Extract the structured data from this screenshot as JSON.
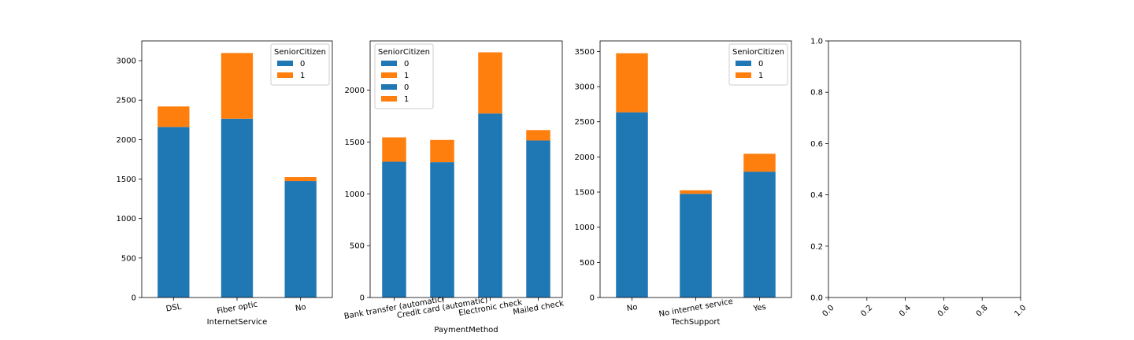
{
  "colors": {
    "senior_0": "#1f77b4",
    "senior_1": "#ff7f0e"
  },
  "chart_data": [
    {
      "type": "bar",
      "stacked": true,
      "xlabel": "InternetService",
      "ylabel": "",
      "categories": [
        "DSL",
        "Fiber optic",
        "No"
      ],
      "ylim": [
        0,
        3250
      ],
      "yticks": [
        0,
        500,
        1000,
        1500,
        2000,
        2500,
        3000
      ],
      "ytick_labels": [
        "0",
        "500",
        "1000",
        "1500",
        "2000",
        "2500",
        "3000"
      ],
      "tick_rotation": -10,
      "series": [
        {
          "name": "0",
          "values": [
            2160,
            2265,
            1475
          ]
        },
        {
          "name": "1",
          "values": [
            260,
            832,
            50
          ]
        }
      ],
      "legend": {
        "title": "SeniorCitizen",
        "placement": "top-right",
        "entries": [
          "0",
          "1"
        ]
      }
    },
    {
      "type": "bar",
      "stacked": true,
      "xlabel": "PaymentMethod",
      "ylabel": "",
      "categories": [
        "Bank transfer (automatic)",
        "Credit card (automatic)",
        "Electronic check",
        "Mailed check"
      ],
      "ylim": [
        0,
        2475
      ],
      "yticks": [
        0,
        500,
        1000,
        1500,
        2000
      ],
      "ytick_labels": [
        "0",
        "500",
        "1000",
        "1500",
        "2000"
      ],
      "tick_rotation": -10,
      "series": [
        {
          "name": "0",
          "values": [
            1310,
            1305,
            1775,
            1515
          ]
        },
        {
          "name": "1",
          "values": [
            235,
            215,
            590,
            100
          ]
        }
      ],
      "legend": {
        "title": "SeniorCitizen",
        "placement": "top-left",
        "entries": [
          "0",
          "1",
          "0",
          "1"
        ]
      }
    },
    {
      "type": "bar",
      "stacked": true,
      "xlabel": "TechSupport",
      "ylabel": "",
      "categories": [
        "No",
        "No internet service",
        "Yes"
      ],
      "ylim": [
        0,
        3650
      ],
      "yticks": [
        0,
        500,
        1000,
        1500,
        2000,
        2500,
        3000,
        3500
      ],
      "ytick_labels": [
        "0",
        "500",
        "1000",
        "1500",
        "2000",
        "2500",
        "3000",
        "3500"
      ],
      "tick_rotation": -10,
      "series": [
        {
          "name": "0",
          "values": [
            2635,
            1475,
            1790
          ]
        },
        {
          "name": "1",
          "values": [
            840,
            50,
            255
          ]
        }
      ],
      "legend": {
        "title": "SeniorCitizen",
        "placement": "top-right",
        "entries": [
          "0",
          "1"
        ]
      }
    },
    {
      "type": "empty",
      "xlabel": "",
      "ylabel": "",
      "xlim": [
        0,
        1
      ],
      "ylim": [
        0,
        1
      ],
      "xticks": [
        0,
        0.2,
        0.4,
        0.6,
        0.8,
        1.0
      ],
      "xtick_labels": [
        "0.0",
        "0.2",
        "0.4",
        "0.6",
        "0.8",
        "1.0"
      ],
      "yticks": [
        0,
        0.2,
        0.4,
        0.6,
        0.8,
        1.0
      ],
      "ytick_labels": [
        "0.0",
        "0.2",
        "0.4",
        "0.6",
        "0.8",
        "1.0"
      ],
      "tick_rotation": -45
    }
  ]
}
